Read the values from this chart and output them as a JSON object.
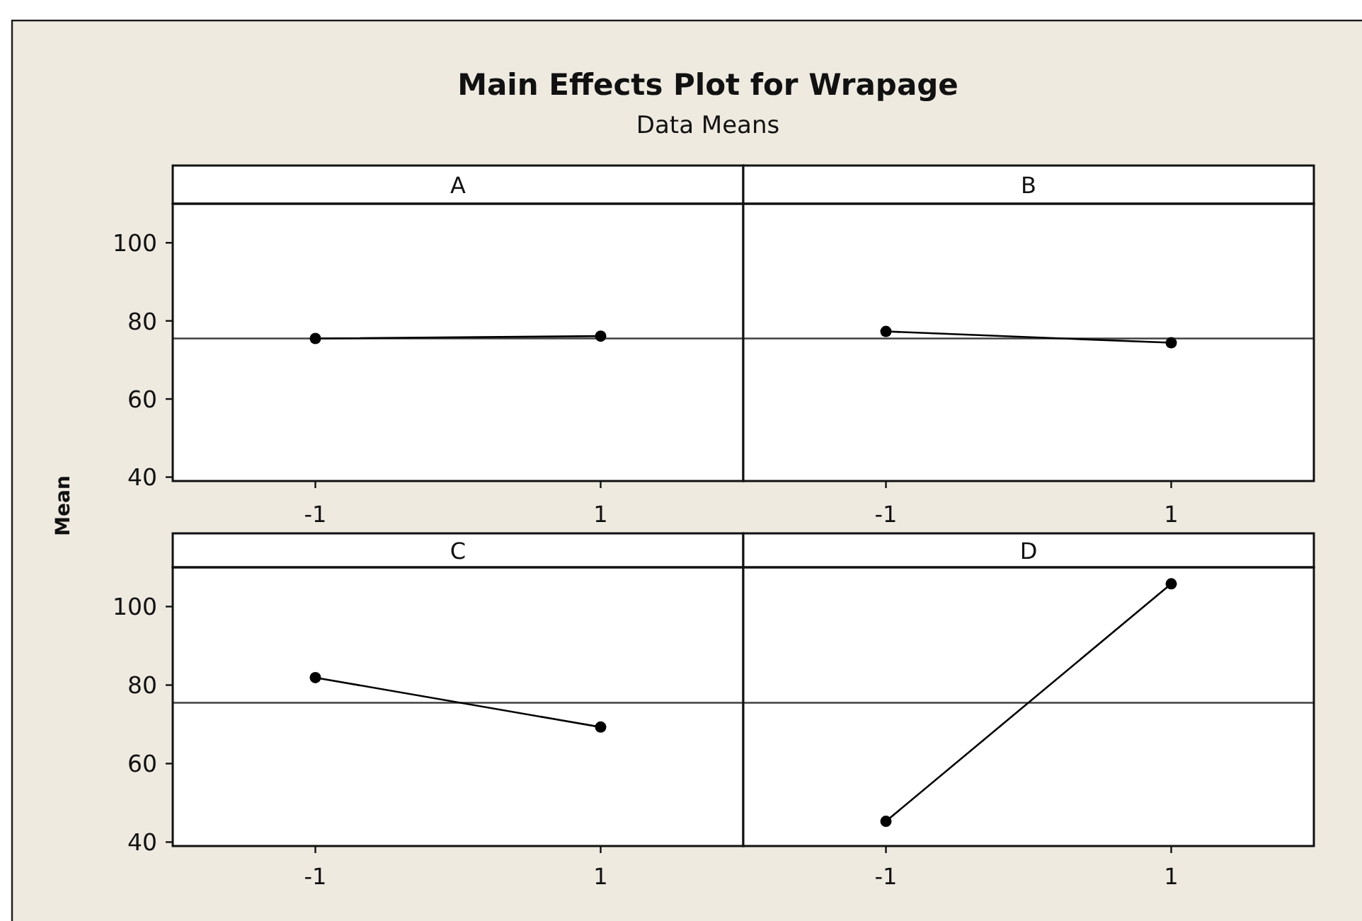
{
  "chart_data": [
    {
      "type": "other",
      "title": "Main Effects Plot for Wrapage",
      "subtitle": "Data Means"
    },
    {
      "type": "line",
      "title": "A",
      "ylabel": "Mean",
      "categories": [
        "-1",
        "1"
      ],
      "values": [
        75.5,
        76.1
      ],
      "color": "#000000",
      "ylim": [
        39,
        110
      ],
      "yticks": [
        40,
        60,
        80,
        100
      ],
      "ref_lines": [
        {
          "axis": "y",
          "value": 75.5,
          "color": "#404040"
        }
      ],
      "marker": "circle"
    },
    {
      "type": "line",
      "title": "B",
      "categories": [
        "-1",
        "1"
      ],
      "values": [
        77.3,
        74.4
      ],
      "color": "#000000",
      "ylim": [
        39,
        110
      ],
      "ref_lines": [
        {
          "axis": "y",
          "value": 75.5,
          "color": "#404040"
        }
      ],
      "marker": "circle",
      "tick_labels": "x"
    },
    {
      "type": "line",
      "title": "C",
      "categories": [
        "-1",
        "1"
      ],
      "values": [
        81.9,
        69.3
      ],
      "color": "#000000",
      "ylim": [
        39,
        110
      ],
      "yticks": [
        40,
        60,
        80,
        100
      ],
      "ref_lines": [
        {
          "axis": "y",
          "value": 75.5,
          "color": "#404040"
        }
      ],
      "marker": "circle"
    },
    {
      "type": "line",
      "title": "D",
      "categories": [
        "-1",
        "1"
      ],
      "values": [
        45.3,
        105.8
      ],
      "color": "#000000",
      "ylim": [
        39,
        110
      ],
      "ref_lines": [
        {
          "axis": "y",
          "value": 75.5,
          "color": "#404040"
        }
      ],
      "marker": "circle",
      "tick_labels": "x"
    }
  ]
}
